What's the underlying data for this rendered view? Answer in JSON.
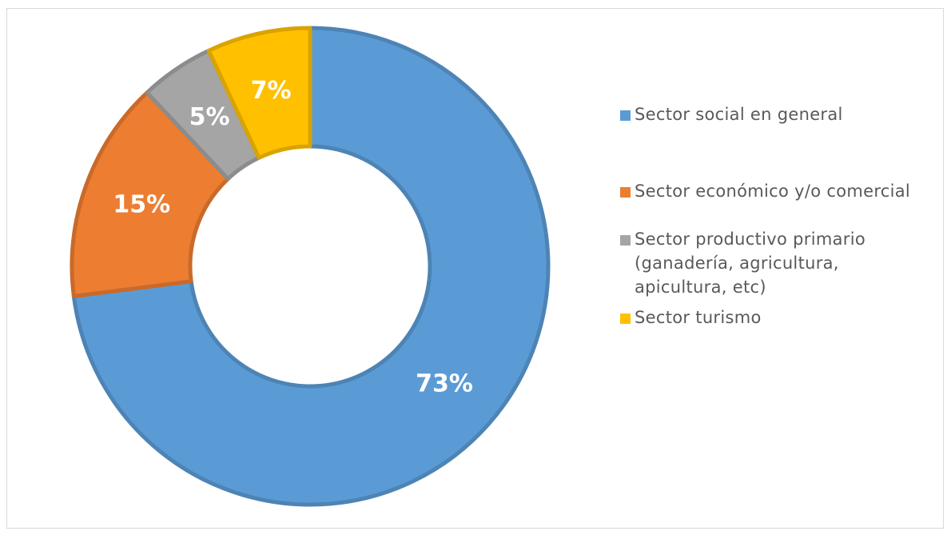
{
  "chart_data": {
    "type": "donut",
    "categories": [
      "Sector social en general",
      "Sector económico y/o comercial",
      "Sector productivo primario (ganadería, agricultura, apicultura, etc)",
      "Sector turismo"
    ],
    "values": [
      73,
      15,
      5,
      7
    ],
    "value_labels": [
      "73%",
      "15%",
      "5%",
      "7%"
    ],
    "colors": [
      "#5b9bd5",
      "#ed7d31",
      "#a5a5a5",
      "#ffc000"
    ],
    "legend": "right"
  }
}
